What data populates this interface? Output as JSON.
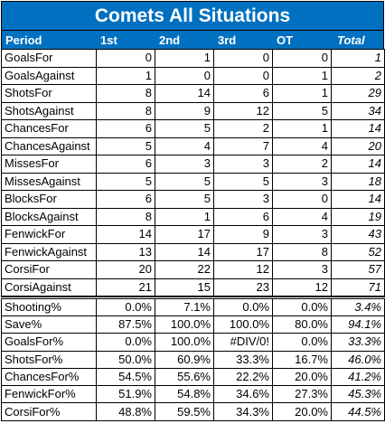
{
  "title": "Comets All Situations",
  "headers": [
    "Period",
    "1st",
    "2nd",
    "3rd",
    "OT",
    "Total"
  ],
  "count_rows": [
    {
      "label": "GoalsFor",
      "values": [
        "0",
        "1",
        "0",
        "0"
      ],
      "total": "1"
    },
    {
      "label": "GoalsAgainst",
      "values": [
        "1",
        "0",
        "0",
        "1"
      ],
      "total": "2"
    },
    {
      "label": "ShotsFor",
      "values": [
        "8",
        "14",
        "6",
        "1"
      ],
      "total": "29"
    },
    {
      "label": "ShotsAgainst",
      "values": [
        "8",
        "9",
        "12",
        "5"
      ],
      "total": "34"
    },
    {
      "label": "ChancesFor",
      "values": [
        "6",
        "5",
        "2",
        "1"
      ],
      "total": "14"
    },
    {
      "label": "ChancesAgainst",
      "values": [
        "5",
        "4",
        "7",
        "4"
      ],
      "total": "20"
    },
    {
      "label": "MissesFor",
      "values": [
        "6",
        "3",
        "3",
        "2"
      ],
      "total": "14"
    },
    {
      "label": "MissesAgainst",
      "values": [
        "5",
        "5",
        "5",
        "3"
      ],
      "total": "18"
    },
    {
      "label": "BlocksFor",
      "values": [
        "6",
        "5",
        "3",
        "0"
      ],
      "total": "14"
    },
    {
      "label": "BlocksAgainst",
      "values": [
        "8",
        "1",
        "6",
        "4"
      ],
      "total": "19"
    },
    {
      "label": "FenwickFor",
      "values": [
        "14",
        "17",
        "9",
        "3"
      ],
      "total": "43"
    },
    {
      "label": "FenwickAgainst",
      "values": [
        "13",
        "14",
        "17",
        "8"
      ],
      "total": "52"
    },
    {
      "label": "CorsiFor",
      "values": [
        "20",
        "22",
        "12",
        "3"
      ],
      "total": "57"
    },
    {
      "label": "CorsiAgainst",
      "values": [
        "21",
        "15",
        "23",
        "12"
      ],
      "total": "71"
    }
  ],
  "percent_rows": [
    {
      "label": "Shooting%",
      "values": [
        "0.0%",
        "7.1%",
        "0.0%",
        "0.0%"
      ],
      "total": "3.4%"
    },
    {
      "label": "Save%",
      "values": [
        "87.5%",
        "100.0%",
        "100.0%",
        "80.0%"
      ],
      "total": "94.1%"
    },
    {
      "label": "GoalsFor%",
      "values": [
        "0.0%",
        "100.0%",
        "#DIV/0!",
        "0.0%"
      ],
      "total": "33.3%"
    },
    {
      "label": "ShotsFor%",
      "values": [
        "50.0%",
        "60.9%",
        "33.3%",
        "16.7%"
      ],
      "total": "46.0%"
    },
    {
      "label": "ChancesFor%",
      "values": [
        "54.5%",
        "55.6%",
        "22.2%",
        "20.0%"
      ],
      "total": "41.2%"
    },
    {
      "label": "FenwickFor%",
      "values": [
        "51.9%",
        "54.8%",
        "34.6%",
        "27.3%"
      ],
      "total": "45.3%"
    },
    {
      "label": "CorsiFor%",
      "values": [
        "48.8%",
        "59.5%",
        "34.3%",
        "20.0%"
      ],
      "total": "44.5%"
    }
  ],
  "colors": {
    "header_bg": "#0070c0",
    "header_text": "#ffffff"
  }
}
